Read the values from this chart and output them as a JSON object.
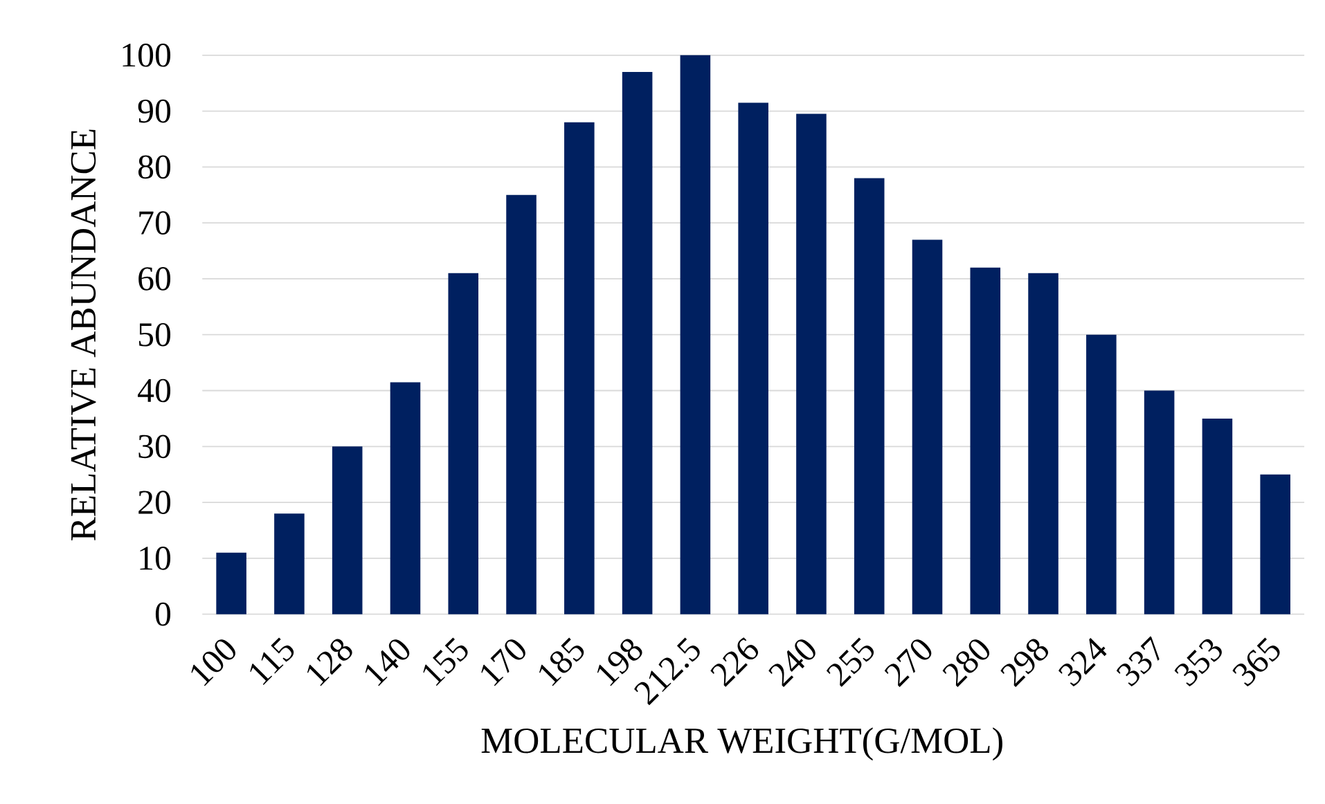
{
  "chart_data": {
    "type": "bar",
    "xlabel": "MOLECULAR WEIGHT(G/MOL)",
    "ylabel": "RELATIVE ABUNDANCE",
    "categories": [
      "100",
      "115",
      "128",
      "140",
      "155",
      "170",
      "185",
      "198",
      "212.5",
      "226",
      "240",
      "255",
      "270",
      "280",
      "298",
      "324",
      "337",
      "353",
      "365"
    ],
    "values": [
      11,
      18,
      30,
      41.5,
      61,
      75,
      88,
      97,
      100,
      91.5,
      89.5,
      78,
      67,
      62,
      61,
      50,
      40,
      35,
      25
    ],
    "color": "#002060",
    "ylim": [
      0,
      100
    ],
    "yticks": [
      0,
      10,
      20,
      30,
      40,
      50,
      60,
      70,
      80,
      90,
      100
    ],
    "grid": "y"
  }
}
